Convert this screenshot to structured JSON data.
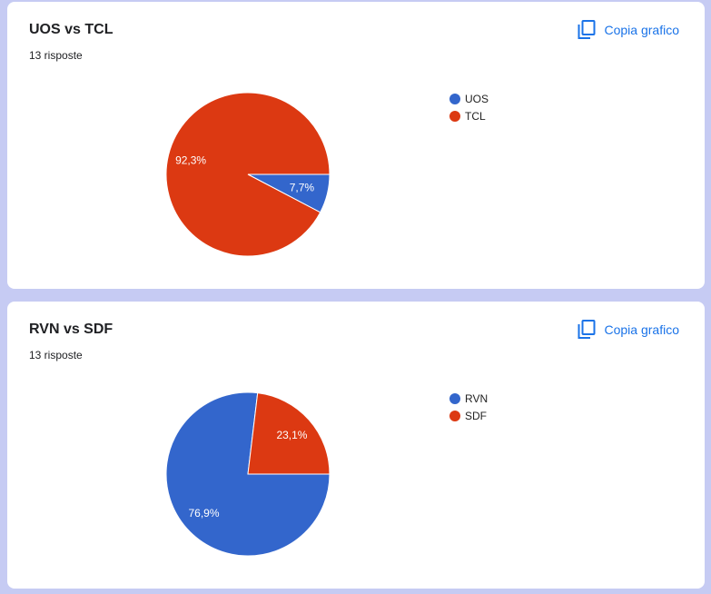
{
  "copy_label": "Copia grafico",
  "charts": [
    {
      "title": "UOS vs TCL",
      "responses": "13 risposte"
    },
    {
      "title": "RVN vs SDF",
      "responses": "13 risposte"
    }
  ],
  "chart_data": [
    {
      "type": "pie",
      "title": "UOS vs TCL",
      "categories": [
        "UOS",
        "TCL"
      ],
      "values": [
        7.7,
        92.3
      ],
      "labels": [
        "7,7%",
        "92,3%"
      ],
      "colors": [
        "#3366cc",
        "#dc3912"
      ],
      "legend": "right"
    },
    {
      "type": "pie",
      "title": "RVN vs SDF",
      "categories": [
        "RVN",
        "SDF"
      ],
      "values": [
        76.9,
        23.1
      ],
      "labels": [
        "76,9%",
        "23,1%"
      ],
      "colors": [
        "#3366cc",
        "#dc3912"
      ],
      "legend": "right"
    }
  ]
}
